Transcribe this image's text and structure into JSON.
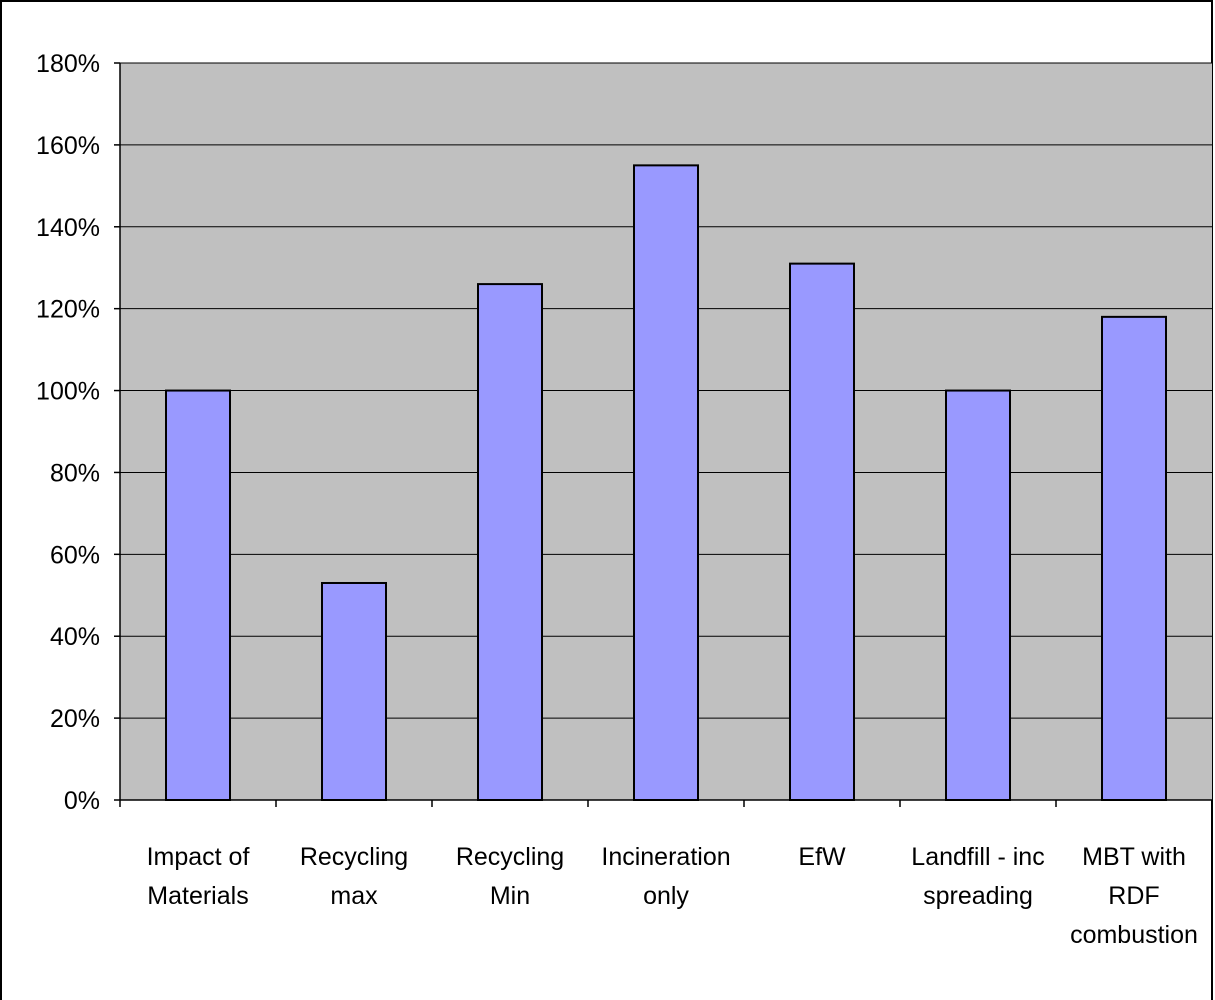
{
  "chart_data": {
    "type": "bar",
    "title": "",
    "xlabel": "",
    "ylabel": "",
    "categories": [
      [
        "Impact of",
        "Materials"
      ],
      [
        "Recycling",
        "max"
      ],
      [
        "Recycling",
        "Min"
      ],
      [
        "Incineration",
        "only"
      ],
      [
        "EfW"
      ],
      [
        "Landfill - inc",
        "spreading"
      ],
      [
        "MBT with",
        "RDF",
        "combustion"
      ]
    ],
    "values": [
      100,
      53,
      126,
      155,
      131,
      100,
      118
    ],
    "unit": "%",
    "ylim": [
      0,
      180
    ],
    "yticks": [
      0,
      20,
      40,
      60,
      80,
      100,
      120,
      140,
      160,
      180
    ],
    "ytick_labels": [
      "0%",
      "20%",
      "40%",
      "60%",
      "80%",
      "100%",
      "120%",
      "140%",
      "160%",
      "180%"
    ],
    "grid": true,
    "legend": "none",
    "colors": {
      "plot_background": "#c0c0c0",
      "bar_fill": "#9999ff",
      "bar_stroke": "#000000",
      "gridline": "#000000"
    }
  }
}
